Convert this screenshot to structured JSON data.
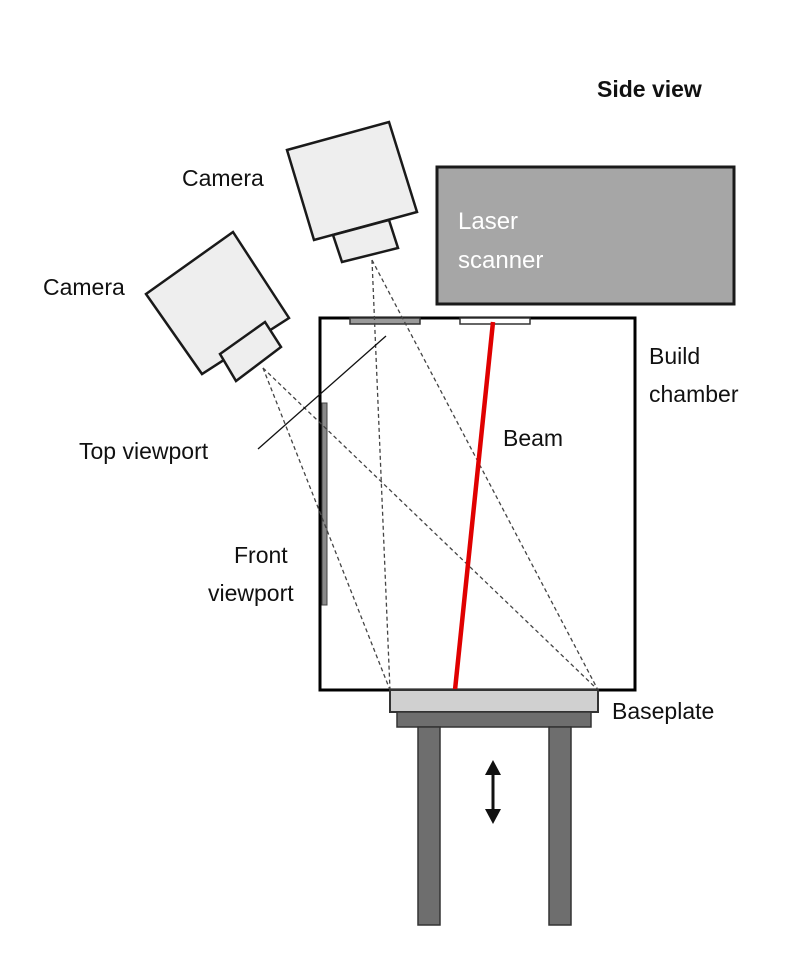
{
  "title": "Side view",
  "labels": {
    "camera_upper": "Camera",
    "camera_left": "Camera",
    "laser_scanner_line1": "Laser",
    "laser_scanner_line2": "scanner",
    "build_chamber_line1": "Build",
    "build_chamber_line2": "chamber",
    "beam": "Beam",
    "top_viewport": "Top viewport",
    "front_viewport_line1": "Front",
    "front_viewport_line2": "viewport",
    "baseplate": "Baseplate"
  },
  "colors": {
    "beam": "#e00000",
    "laser_scanner_fill": "#a6a6a6",
    "camera_body_fill": "#eeeeee",
    "baseplate_fill": "#d0d0d0",
    "stage_fill": "#6e6e6e",
    "viewport_fill": "#9a9a9a"
  },
  "icons": {
    "motion_arrow": "double-headed-vertical-arrow"
  }
}
